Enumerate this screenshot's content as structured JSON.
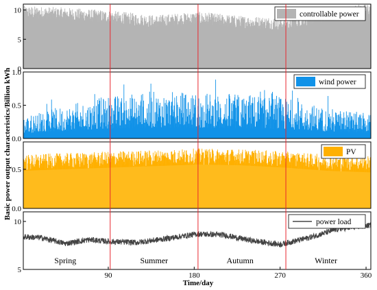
{
  "chart_data": {
    "type": "stacked-subplots",
    "ylabel": "Basic power output characteristics/Billion kWh",
    "xlabel": "Time/day",
    "xlim": [
      1,
      365
    ],
    "xticks": [
      90,
      180,
      270,
      360
    ],
    "separators": [
      92,
      184,
      276
    ],
    "seasons": [
      {
        "name": "Spring",
        "x": 45
      },
      {
        "name": "Summer",
        "x": 138
      },
      {
        "name": "Autumn",
        "x": 228
      },
      {
        "name": "Winter",
        "x": 318
      }
    ],
    "panels": [
      {
        "name": "controllable power",
        "type": "bar",
        "color": "#b4b4b4",
        "ylim": [
          0,
          11
        ],
        "yticks": [
          0,
          5,
          10
        ],
        "legend": "top-right",
        "profile": {
          "days": [
            1,
            45,
            92,
            138,
            184,
            230,
            276,
            320,
            365
          ],
          "mean": [
            9.6,
            9.3,
            8.8,
            8.0,
            8.6,
            7.9,
            7.6,
            9.2,
            10.1
          ],
          "spread": 1.4
        }
      },
      {
        "name": "wind power",
        "type": "bar",
        "color": "#1192e8",
        "ylim": [
          0,
          1.0
        ],
        "yticks": [
          0.0,
          0.5,
          1.0
        ],
        "legend": "top-right",
        "profile": {
          "days": [
            1,
            45,
            92,
            138,
            184,
            230,
            276,
            320,
            365
          ],
          "mean": [
            0.22,
            0.32,
            0.42,
            0.46,
            0.45,
            0.44,
            0.4,
            0.3,
            0.24
          ],
          "spread": 0.28
        }
      },
      {
        "name": "PV",
        "type": "bar",
        "color": "#ffb000",
        "ylim": [
          0,
          0.85
        ],
        "yticks": [
          0.0,
          0.5
        ],
        "legend": "top-right",
        "profile": {
          "days": [
            1,
            45,
            92,
            138,
            184,
            230,
            276,
            320,
            365
          ],
          "mean": [
            0.58,
            0.6,
            0.62,
            0.64,
            0.66,
            0.65,
            0.62,
            0.58,
            0.56
          ],
          "spread": 0.09
        }
      },
      {
        "name": "power load",
        "type": "line",
        "color": "#222222",
        "ylim": [
          5,
          11
        ],
        "yticks": [
          5,
          10
        ],
        "legend": "top-right",
        "profile": {
          "days": [
            1,
            20,
            45,
            70,
            92,
            120,
            150,
            184,
            210,
            240,
            270,
            300,
            330,
            365
          ],
          "mean": [
            8.4,
            8.3,
            7.7,
            8.1,
            7.9,
            7.8,
            8.2,
            8.7,
            8.6,
            8.0,
            7.6,
            8.3,
            9.2,
            9.6
          ],
          "spread": 0.3
        }
      }
    ]
  }
}
